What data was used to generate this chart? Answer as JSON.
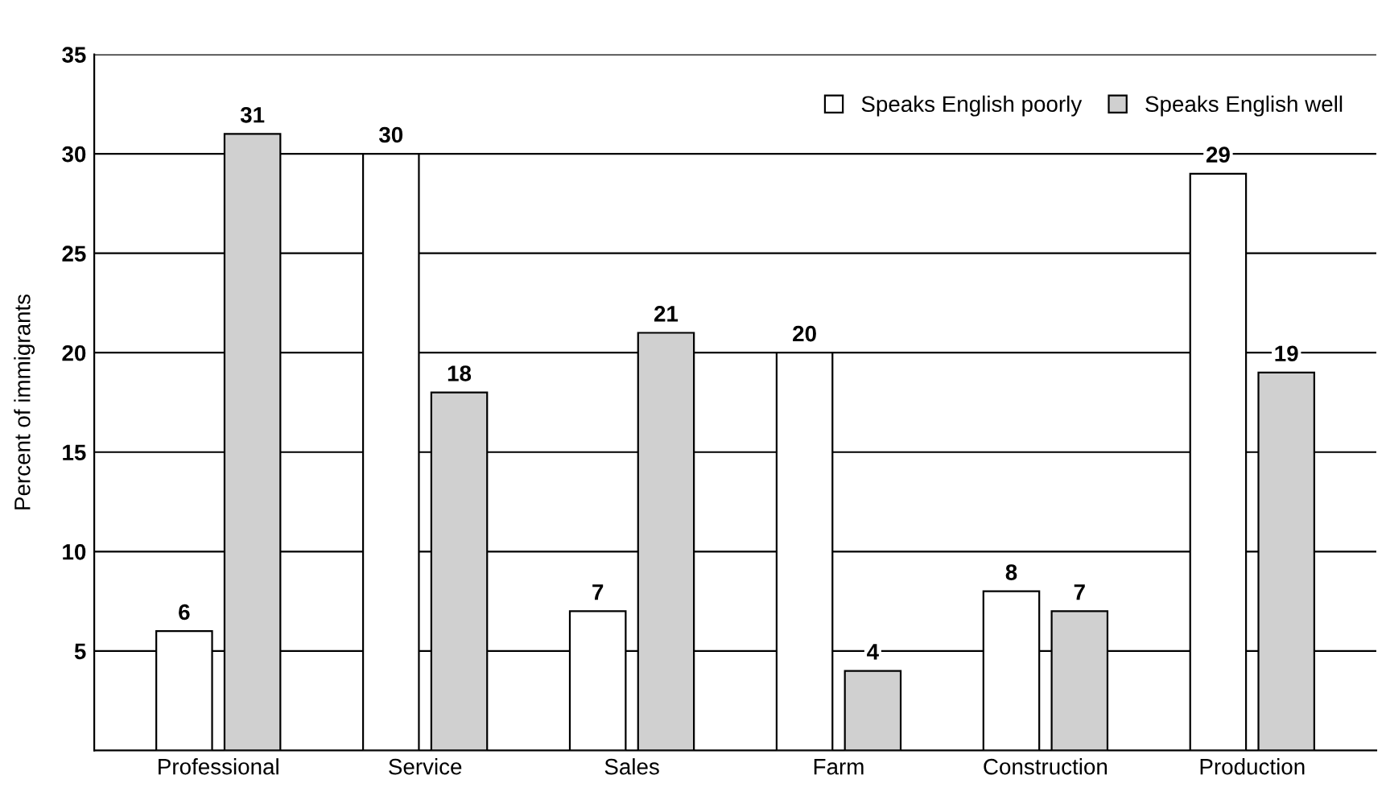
{
  "chart_data": {
    "type": "bar",
    "ylabel": "Percent of immigrants",
    "categories": [
      "Professional",
      "Service",
      "Sales",
      "Farm",
      "Construction",
      "Production"
    ],
    "series": [
      {
        "name": "Speaks English poorly",
        "color": "#ffffff",
        "values": [
          6,
          30,
          7,
          20,
          8,
          29
        ]
      },
      {
        "name": "Speaks English well",
        "color": "#d0d0d0",
        "values": [
          31,
          18,
          21,
          4,
          7,
          19
        ]
      }
    ],
    "ylim": [
      0,
      35
    ],
    "yticks": [
      5,
      10,
      15,
      20,
      25,
      30,
      35
    ],
    "grid": "y",
    "legend": "top right",
    "data_labels": true
  }
}
